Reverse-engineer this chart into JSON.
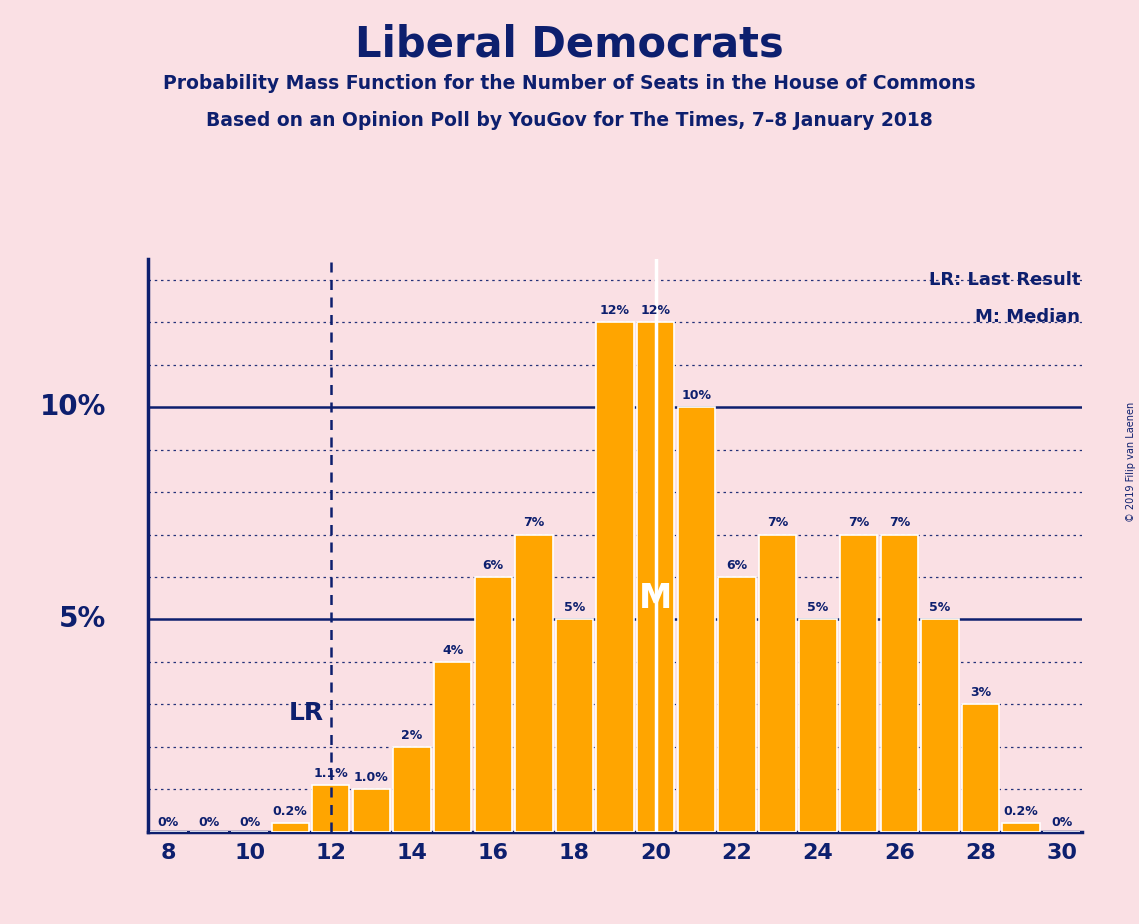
{
  "title": "Liberal Democrats",
  "subtitle1": "Probability Mass Function for the Number of Seats in the House of Commons",
  "subtitle2": "Based on an Opinion Poll by YouGov for The Times, 7–8 January 2018",
  "copyright": "© 2019 Filip van Laenen",
  "seats": [
    8,
    9,
    10,
    11,
    12,
    13,
    14,
    15,
    16,
    17,
    18,
    19,
    20,
    21,
    22,
    23,
    24,
    25,
    26,
    27,
    28,
    29,
    30
  ],
  "probabilities": [
    0.0,
    0.0,
    0.0,
    0.2,
    1.1,
    1.0,
    2.0,
    4.0,
    6.0,
    7.0,
    5.0,
    12.0,
    12.0,
    10.0,
    6.0,
    7.0,
    5.0,
    7.0,
    7.0,
    5.0,
    3.0,
    0.2,
    0.0
  ],
  "labels": [
    "0%",
    "0%",
    "0%",
    "0.2%",
    "1.1%",
    "1.0%",
    "2%",
    "4%",
    "6%",
    "7%",
    "5%",
    "12%",
    "12%",
    "10%",
    "6%",
    "7%",
    "5%",
    "7%",
    "7%",
    "5%",
    "3%",
    "0.2%",
    "0%"
  ],
  "bar_color": "#FFA500",
  "background_color": "#FAE0E4",
  "text_color": "#0D1F6E",
  "axis_color": "#0D1F6E",
  "grid_color": "#0D1F6E",
  "lr_seat": 12,
  "median_seat": 20,
  "xlim": [
    7.5,
    30.5
  ],
  "ylim": [
    0,
    13.5
  ],
  "xticks": [
    8,
    10,
    12,
    14,
    16,
    18,
    20,
    22,
    24,
    26,
    28,
    30
  ],
  "legend_lr": "LR: Last Result",
  "legend_m": "M: Median",
  "ylabel_5": "5%",
  "ylabel_10": "10%"
}
